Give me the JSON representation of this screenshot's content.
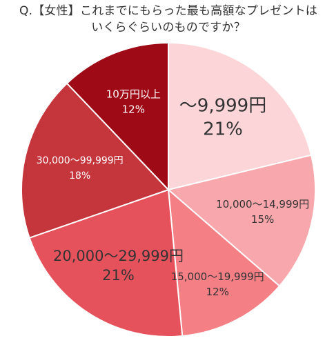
{
  "title": {
    "line1": "Q.【女性】これまでにもらった最も高額なプレゼントは",
    "line2": "いくらぐらいのものですか？"
  },
  "chart_data": {
    "type": "pie",
    "title": "Q.【女性】これまでにもらった最も高額なプレゼントは いくらぐらいのものですか？",
    "start": "12 o'clock, clockwise",
    "slices": [
      {
        "label": "～9,999円",
        "percent_label": "21%",
        "value": 21,
        "color": "#FCD5D8",
        "text_color": "#333333"
      },
      {
        "label": "10,000～14,999円",
        "percent_label": "15%",
        "value": 15,
        "color": "#F8A7AC",
        "text_color": "#333333"
      },
      {
        "label": "15,000～19,999円",
        "percent_label": "12%",
        "value": 12,
        "color": "#F48086",
        "text_color": "#333333"
      },
      {
        "label": "20,000～29,999円",
        "percent_label": "21%",
        "value": 21,
        "color": "#E6525C",
        "text_color": "#333333"
      },
      {
        "label": "30,000～99,999円",
        "percent_label": "18%",
        "value": 18,
        "color": "#C4363C",
        "text_color": "#ffffff"
      },
      {
        "label": "10万円以上",
        "percent_label": "12%",
        "value": 12,
        "color": "#9E0B16",
        "text_color": "#ffffff"
      }
    ]
  }
}
